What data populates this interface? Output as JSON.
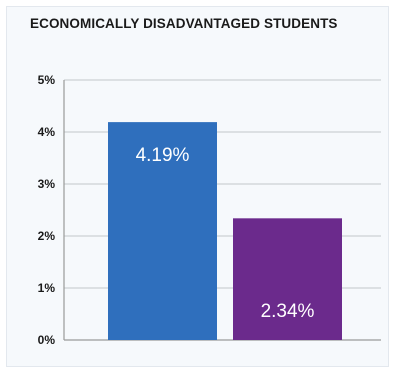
{
  "chart_data": {
    "type": "bar",
    "title": "ECONOMICALLY DISADVANTAGED STUDENTS",
    "categories": [
      "",
      ""
    ],
    "values": [
      4.19,
      2.34
    ],
    "data_labels": [
      "4.19%",
      "2.34%"
    ],
    "colors": [
      "#2f6fbd",
      "#6b2a8c"
    ],
    "ylim": [
      0,
      5
    ],
    "yticks": [
      0,
      1,
      2,
      3,
      4,
      5
    ],
    "ytick_labels": [
      "0%",
      "1%",
      "2%",
      "3%",
      "4%",
      "5%"
    ],
    "xlabel": "",
    "ylabel": "",
    "grid": true,
    "legend": "none"
  }
}
